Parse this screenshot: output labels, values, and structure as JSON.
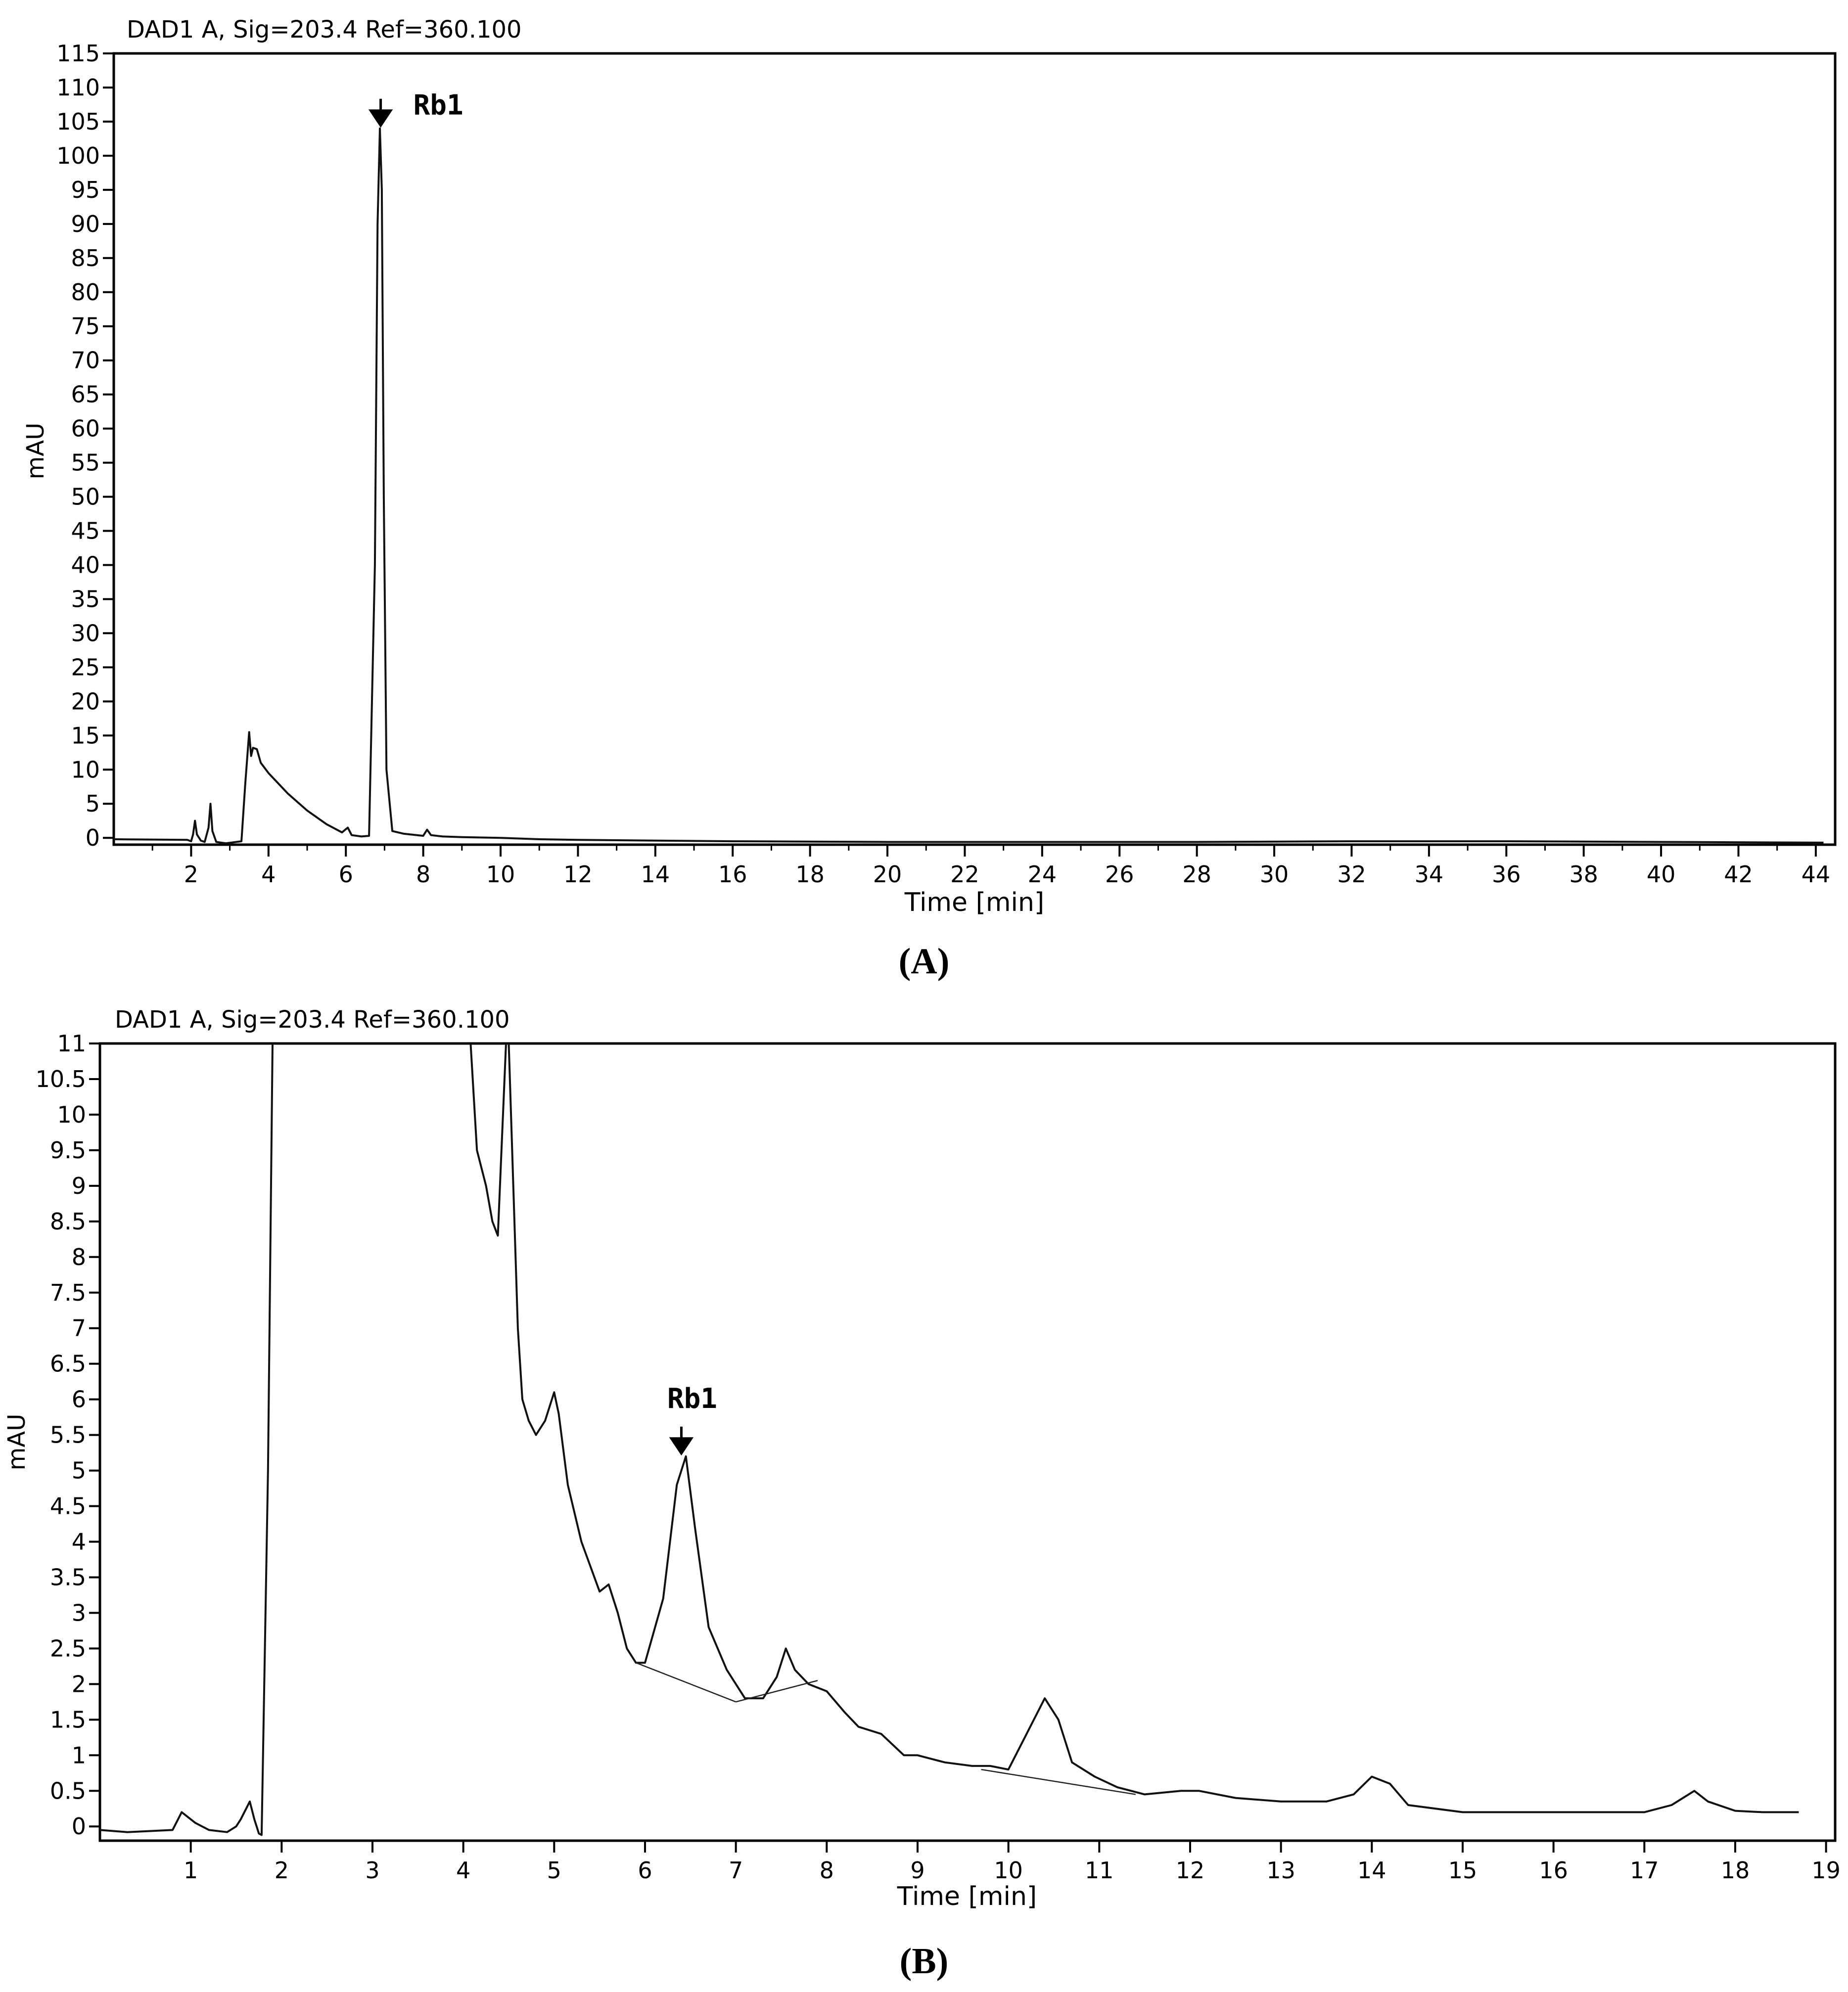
{
  "chart_data": [
    {
      "type": "line",
      "panel": "A",
      "title": "DAD1 A, Sig=203.4 Ref=360.100",
      "xlabel": "Time [min]",
      "ylabel": "mAU",
      "xlim": [
        0,
        44.5
      ],
      "ylim": [
        -1,
        115
      ],
      "xticks": [
        2,
        4,
        6,
        8,
        10,
        12,
        14,
        16,
        18,
        20,
        22,
        24,
        26,
        28,
        30,
        32,
        34,
        36,
        38,
        40,
        42,
        44
      ],
      "yticks": [
        0,
        5,
        10,
        15,
        20,
        25,
        30,
        35,
        40,
        45,
        50,
        55,
        60,
        65,
        70,
        75,
        80,
        85,
        90,
        95,
        100,
        105,
        110,
        115
      ],
      "ytick_labels": [
        "0",
        "5",
        "10",
        "15",
        "20",
        "25",
        "30",
        "35",
        "40",
        "45",
        "50",
        "55",
        "60",
        "65",
        "70",
        "75",
        "80",
        "85",
        "90",
        "95",
        "100",
        "105",
        "110",
        "115"
      ],
      "grid": false,
      "series": [
        {
          "x": [
            0,
            1.9,
            2.0,
            2.05,
            2.1,
            2.15,
            2.25,
            2.35,
            2.45,
            2.5,
            2.55,
            2.65,
            2.9,
            3.3,
            3.4,
            3.5,
            3.55,
            3.6,
            3.7,
            3.8,
            4.0,
            4.5,
            5.0,
            5.5,
            5.9,
            6.05,
            6.15,
            6.4,
            6.6,
            6.75,
            6.82,
            6.88,
            6.93,
            6.98,
            7.05,
            7.2,
            7.5,
            8.0,
            8.1,
            8.2,
            8.5,
            9.0,
            10.0,
            11.0,
            12.0,
            14.0,
            16.0,
            20.0,
            24.0,
            28.0,
            32.0,
            36.0,
            40.0,
            44.2
          ],
          "y": [
            -0.2,
            -0.3,
            -0.5,
            0.5,
            2.5,
            0.5,
            -0.4,
            -0.6,
            1.5,
            5.0,
            1.0,
            -0.6,
            -0.8,
            -0.5,
            8.0,
            15.5,
            12.0,
            13.2,
            13.0,
            11.0,
            9.5,
            6.5,
            4.0,
            2.0,
            0.8,
            1.5,
            0.4,
            0.2,
            0.3,
            40.0,
            90.0,
            104.0,
            95.0,
            50.0,
            10.0,
            1.0,
            0.6,
            0.3,
            1.2,
            0.4,
            0.2,
            0.1,
            0.0,
            -0.2,
            -0.3,
            -0.4,
            -0.5,
            -0.6,
            -0.6,
            -0.6,
            -0.5,
            -0.5,
            -0.6,
            -0.7
          ]
        }
      ],
      "annotations": [
        {
          "text": "Rb1",
          "x": 6.9,
          "y": 104
        }
      ]
    },
    {
      "type": "line",
      "panel": "B",
      "title": "DAD1 A, Sig=203.4 Ref=360.100",
      "xlabel": "Time [min]",
      "ylabel": "mAU",
      "xlim": [
        0,
        19.1
      ],
      "ylim": [
        -0.2,
        11
      ],
      "xticks": [
        1,
        2,
        3,
        4,
        5,
        6,
        7,
        8,
        9,
        10,
        11,
        12,
        13,
        14,
        15,
        16,
        17,
        18,
        19
      ],
      "yticks": [
        0,
        0.5,
        1,
        1.5,
        2,
        2.5,
        3,
        3.5,
        4,
        4.5,
        5,
        5.5,
        6,
        6.5,
        7,
        7.5,
        8,
        8.5,
        9,
        9.5,
        10,
        10.5,
        11
      ],
      "ytick_labels": [
        "0",
        "0.5",
        "1",
        "1.5",
        "2",
        "2.5",
        "3",
        "3.5",
        "4",
        "4.5",
        "5",
        "5.5",
        "6",
        "6.5",
        "7",
        "7.5",
        "8",
        "8.5",
        "9",
        "9.5",
        "10",
        "10.5",
        "11"
      ],
      "grid": false,
      "series": [
        {
          "x": [
            0,
            0.3,
            0.8,
            0.9,
            0.95,
            1.05,
            1.2,
            1.4,
            1.5,
            1.55,
            1.65,
            1.7,
            1.75,
            1.78,
            1.85,
            1.9,
            1.92
          ],
          "y": [
            -0.05,
            -0.08,
            -0.05,
            0.2,
            0.15,
            0.05,
            -0.05,
            -0.08,
            0.0,
            0.1,
            0.35,
            0.1,
            -0.1,
            -0.12,
            5.0,
            11.0,
            11.0
          ]
        },
        {
          "x": [
            4.08,
            4.15,
            4.25,
            4.32,
            4.38,
            4.42,
            4.47,
            4.5,
            4.55,
            4.6,
            4.65,
            4.72,
            4.8,
            4.9,
            5.0,
            5.05,
            5.15,
            5.3,
            5.5,
            5.6,
            5.7,
            5.8,
            5.9,
            6.0,
            6.2,
            6.35,
            6.45,
            6.55,
            6.7,
            6.9,
            7.1,
            7.3,
            7.45,
            7.55,
            7.65,
            7.8,
            8.0,
            8.2,
            8.35,
            8.6,
            8.85,
            9.0,
            9.3,
            9.6,
            9.8,
            10.0,
            10.2,
            10.4,
            10.55,
            10.7,
            10.95,
            11.2,
            11.5,
            11.9,
            12.1,
            12.5,
            13.0,
            13.5,
            13.8,
            14.0,
            14.2,
            14.4,
            15.0,
            15.5,
            16.0,
            16.5,
            17.0,
            17.3,
            17.55,
            17.7,
            18.0,
            18.3,
            18.7
          ],
          "y": [
            11.0,
            9.5,
            9.0,
            8.5,
            8.3,
            9.5,
            11.0,
            11.0,
            9.0,
            7.0,
            6.0,
            5.7,
            5.5,
            5.7,
            6.1,
            5.8,
            4.8,
            4.0,
            3.3,
            3.4,
            3.0,
            2.5,
            2.3,
            2.3,
            3.2,
            4.8,
            5.2,
            4.2,
            2.8,
            2.2,
            1.8,
            1.8,
            2.1,
            2.5,
            2.2,
            2.0,
            1.9,
            1.6,
            1.4,
            1.3,
            1.0,
            1.0,
            0.9,
            0.85,
            0.85,
            0.8,
            1.3,
            1.8,
            1.5,
            0.9,
            0.7,
            0.55,
            0.45,
            0.5,
            0.5,
            0.4,
            0.35,
            0.35,
            0.45,
            0.7,
            0.6,
            0.3,
            0.2,
            0.2,
            0.2,
            0.2,
            0.2,
            0.3,
            0.5,
            0.35,
            0.22,
            0.2,
            0.2
          ]
        }
      ],
      "baselines": [
        {
          "x": [
            5.9,
            7.0
          ],
          "y": [
            2.3,
            1.75
          ]
        },
        {
          "x": [
            7.0,
            7.9
          ],
          "y": [
            1.75,
            2.05
          ]
        },
        {
          "x": [
            9.7,
            11.4
          ],
          "y": [
            0.8,
            0.45
          ]
        }
      ],
      "annotations": [
        {
          "text": "Rb1",
          "x": 6.4,
          "y": 5.2
        }
      ]
    }
  ],
  "panels": {
    "a": {
      "label": "(A)"
    },
    "b": {
      "label": "(B)"
    }
  }
}
